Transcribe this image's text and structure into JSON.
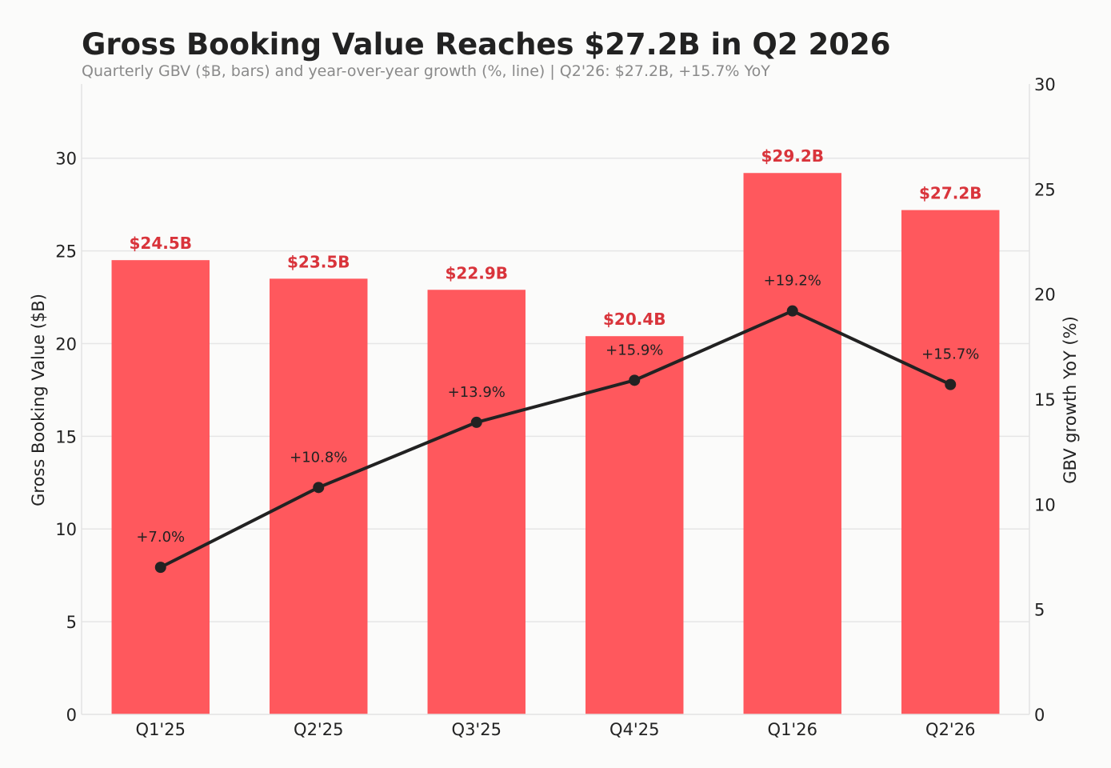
{
  "chart_data": {
    "type": "bar",
    "title": "Gross Booking Value Reaches $27.2B in Q2 2026",
    "subtitle": "Quarterly GBV ($B, bars) and year-over-year growth (%, line)  |  Q2'26: $27.2B, +15.7% YoY",
    "categories": [
      "Q1'25",
      "Q2'25",
      "Q3'25",
      "Q4'25",
      "Q1'26",
      "Q2'26"
    ],
    "series": [
      {
        "type": "bar",
        "axis": "left",
        "values": [
          24.5,
          23.5,
          22.9,
          20.4,
          29.2,
          27.2
        ],
        "labels": [
          "$24.5B",
          "$23.5B",
          "$22.9B",
          "$20.4B",
          "$29.2B",
          "$27.2B"
        ]
      },
      {
        "type": "line",
        "axis": "right",
        "values": [
          7.0,
          10.8,
          13.9,
          15.9,
          19.2,
          15.7
        ],
        "labels": [
          "+7.0%",
          "+10.8%",
          "+13.9%",
          "+15.9%",
          "+19.2%",
          "+15.7%"
        ]
      }
    ],
    "ylabel": "Gross Booking Value ($B)",
    "ylabel_right": "GBV growth YoY (%)",
    "ylim": [
      0,
      34
    ],
    "ylim_right": [
      0,
      30
    ],
    "yticks": [
      0,
      5,
      10,
      15,
      20,
      25,
      30
    ],
    "yticks_right": [
      0,
      5,
      10,
      15,
      20,
      25,
      30
    ],
    "grid": true,
    "legend": "none",
    "colors": {
      "bar": "#FF585D",
      "bar_label": "#D9343B",
      "line": "#222222",
      "grid": "#E6E6E6",
      "background": "#FBFBFA"
    }
  }
}
